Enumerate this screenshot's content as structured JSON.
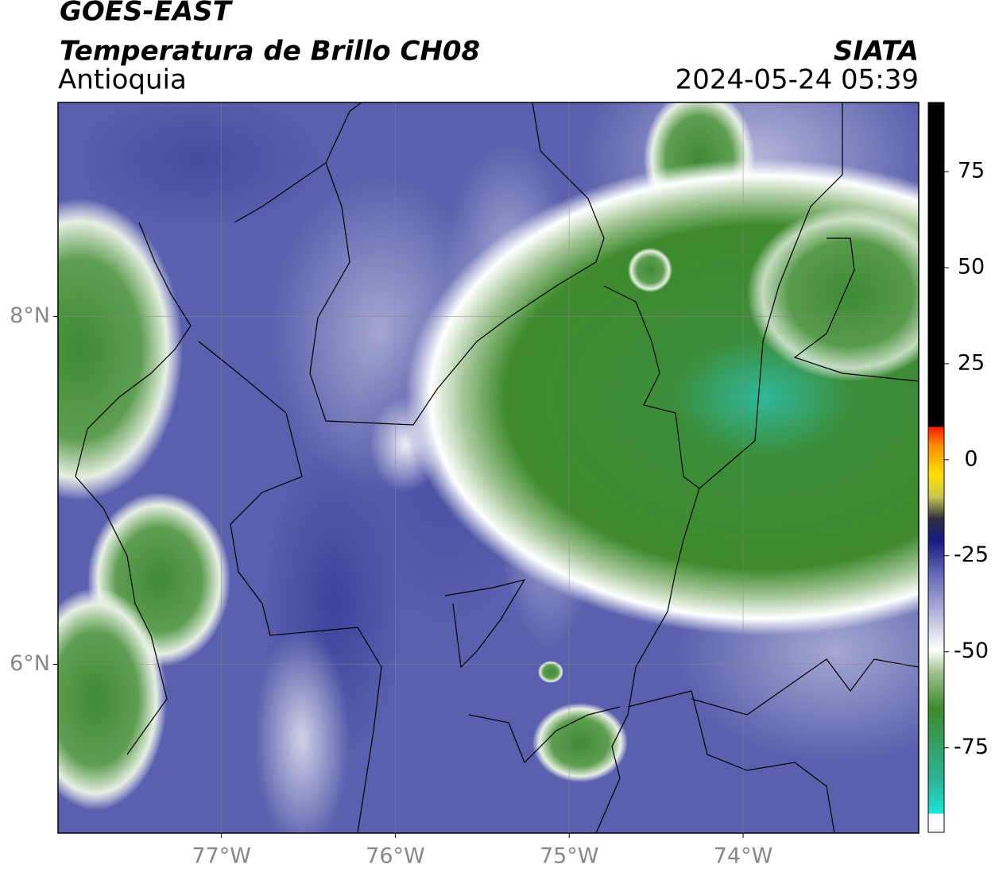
{
  "header": {
    "title": "GOES-EAST",
    "subtitle": "Temperatura de Brillo CH08",
    "region": "Antioquia",
    "source": "SIATA",
    "datetime": "2024-05-24 05:39"
  },
  "map": {
    "xlim": [
      -77.94,
      -72.99
    ],
    "ylim": [
      5.03,
      9.23
    ],
    "xticks": [
      {
        "value": -77,
        "label": "77°W"
      },
      {
        "value": -76,
        "label": "76°W"
      },
      {
        "value": -75,
        "label": "75°W"
      },
      {
        "value": -74,
        "label": "74°W"
      }
    ],
    "yticks": [
      {
        "value": 8,
        "label": "8°N"
      },
      {
        "value": 6,
        "label": "6°N"
      }
    ],
    "grid": true
  },
  "colorbar": {
    "lim": [
      -97,
      93
    ],
    "ticks": [
      75,
      50,
      25,
      0,
      -25,
      -50,
      -75
    ]
  }
}
